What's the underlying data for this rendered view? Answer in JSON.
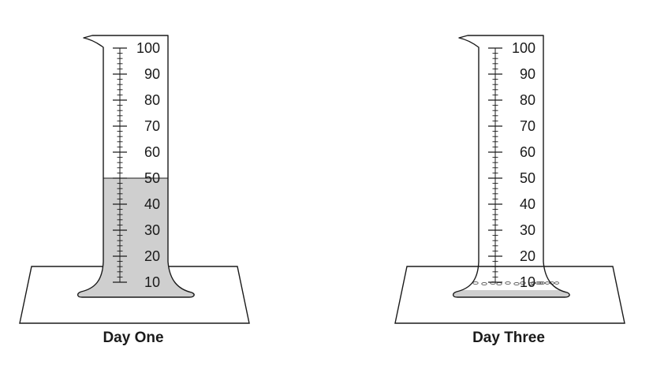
{
  "cylinders": [
    {
      "caption": "Day One",
      "liquid_level_ml": 50,
      "scale_labels": [
        "100",
        "90",
        "80",
        "70",
        "60",
        "50",
        "40",
        "30",
        "20",
        "10"
      ]
    },
    {
      "caption": "Day Three",
      "liquid_level_ml": 10,
      "scale_labels": [
        "100",
        "90",
        "80",
        "70",
        "60",
        "50",
        "40",
        "30",
        "20",
        "10"
      ]
    }
  ],
  "colors": {
    "liquid": "#cfcfcf",
    "outline": "#1a1a1a",
    "residue": "#555555"
  }
}
